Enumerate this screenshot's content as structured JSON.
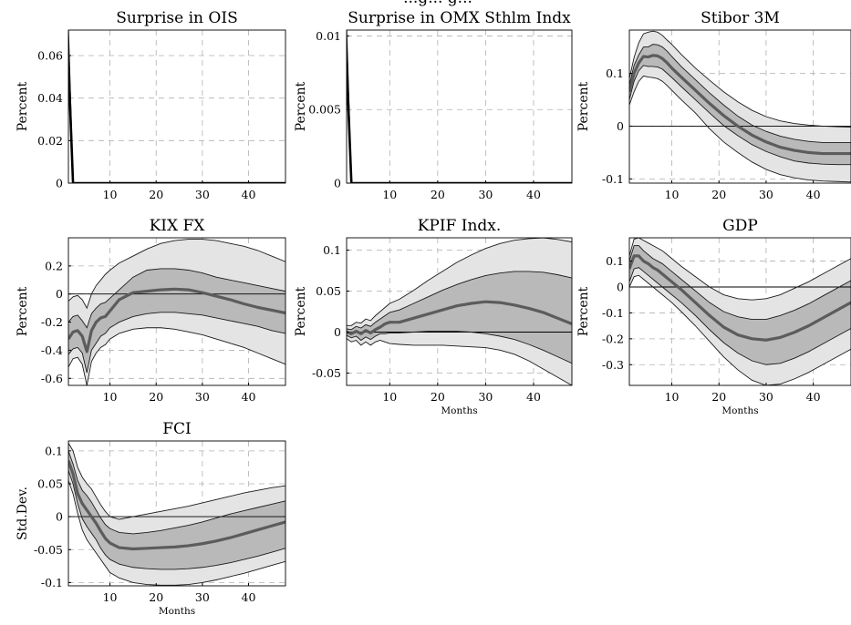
{
  "figure": {
    "partial_title": "...g... g..."
  },
  "colors": {
    "outer_band": "#e4e4e4",
    "inner_band": "#b9b9b9",
    "median_line": "#5c5c5c",
    "band_edges": "#1a1a1a",
    "grid": "#b0b0b0",
    "zero_line": "#000000",
    "shock_line": "#000000"
  },
  "chart_data": [
    {
      "type": "line",
      "title": "Surprise in OIS",
      "ylabel": "Percent",
      "xlabel": "",
      "xlim": [
        1,
        48
      ],
      "ylim": [
        0,
        0.072
      ],
      "xticks": [
        10,
        20,
        30,
        40
      ],
      "yticks": [
        0,
        0.02,
        0.04,
        0.06
      ],
      "ytick_labels": [
        "0",
        "0.02",
        "0.04",
        "0.06"
      ],
      "grid": true,
      "shock": {
        "x": [
          1,
          2,
          48
        ],
        "upper": [
          0.072,
          0,
          0
        ],
        "median": [
          0.057,
          0,
          0
        ]
      }
    },
    {
      "type": "line",
      "title": "Surprise in OMX Sthlm Indx",
      "ylabel": "Percent",
      "xlabel": "",
      "xlim": [
        1,
        48
      ],
      "ylim": [
        0,
        0.0104
      ],
      "xticks": [
        10,
        20,
        30,
        40
      ],
      "yticks": [
        0,
        0.005,
        0.01
      ],
      "ytick_labels": [
        "0",
        "0.005",
        "0.01"
      ],
      "grid": true,
      "shock": {
        "x": [
          1,
          2,
          48
        ],
        "upper": [
          0.0104,
          0,
          0
        ],
        "median": [
          0.0082,
          0,
          0
        ]
      }
    },
    {
      "type": "area",
      "title": "Stibor 3M",
      "ylabel": "Percent",
      "xlabel": "",
      "xlim": [
        1,
        48
      ],
      "ylim": [
        -0.108,
        0.182
      ],
      "xticks": [
        10,
        20,
        30,
        40
      ],
      "yticks": [
        -0.1,
        0,
        0.1
      ],
      "ytick_labels": [
        "-0.1",
        "0",
        "0.1"
      ],
      "grid": true,
      "zero_line": true,
      "x": [
        1,
        2,
        3,
        4,
        5,
        6,
        7,
        8,
        9,
        10,
        12,
        15,
        18,
        21,
        24,
        27,
        30,
        33,
        36,
        39,
        42,
        45,
        48
      ],
      "series": [
        {
          "role": "outer_lower",
          "values": [
            0.04,
            0.065,
            0.085,
            0.095,
            0.093,
            0.092,
            0.09,
            0.085,
            0.077,
            0.068,
            0.05,
            0.025,
            -0.005,
            -0.03,
            -0.05,
            -0.068,
            -0.082,
            -0.092,
            -0.098,
            -0.102,
            -0.104,
            -0.105,
            -0.106
          ]
        },
        {
          "role": "inner_lower",
          "values": [
            0.05,
            0.085,
            0.105,
            0.115,
            0.113,
            0.113,
            0.112,
            0.108,
            0.1,
            0.092,
            0.075,
            0.05,
            0.025,
            0.001,
            -0.018,
            -0.035,
            -0.048,
            -0.058,
            -0.066,
            -0.07,
            -0.072,
            -0.073,
            -0.073
          ]
        },
        {
          "role": "median",
          "values": [
            0.065,
            0.1,
            0.12,
            0.132,
            0.131,
            0.134,
            0.133,
            0.128,
            0.12,
            0.11,
            0.093,
            0.068,
            0.043,
            0.02,
            0.0,
            -0.017,
            -0.03,
            -0.04,
            -0.046,
            -0.05,
            -0.052,
            -0.052,
            -0.052
          ]
        },
        {
          "role": "inner_upper",
          "values": [
            0.078,
            0.115,
            0.135,
            0.15,
            0.15,
            0.155,
            0.154,
            0.15,
            0.142,
            0.132,
            0.113,
            0.088,
            0.063,
            0.04,
            0.019,
            0.002,
            -0.01,
            -0.019,
            -0.025,
            -0.029,
            -0.031,
            -0.031,
            -0.031
          ]
        },
        {
          "role": "outer_upper",
          "values": [
            0.09,
            0.13,
            0.158,
            0.175,
            0.178,
            0.18,
            0.178,
            0.172,
            0.163,
            0.155,
            0.136,
            0.11,
            0.087,
            0.065,
            0.046,
            0.03,
            0.018,
            0.01,
            0.005,
            0.002,
            0.0,
            -0.001,
            -0.002
          ]
        }
      ]
    },
    {
      "type": "area",
      "title": "KIX FX",
      "ylabel": "Percent",
      "xlabel": "",
      "xlim": [
        1,
        48
      ],
      "ylim": [
        -0.65,
        0.4
      ],
      "xticks": [
        10,
        20,
        30,
        40
      ],
      "yticks": [
        -0.6,
        -0.4,
        -0.2,
        0,
        0.2
      ],
      "ytick_labels": [
        "-0.6",
        "-0.4",
        "-0.2",
        "0",
        "0.2"
      ],
      "grid": true,
      "zero_line": true,
      "x": [
        1,
        2,
        3,
        4,
        5,
        6,
        7,
        8,
        9,
        10,
        12,
        15,
        18,
        21,
        24,
        27,
        30,
        33,
        36,
        39,
        42,
        45,
        48
      ],
      "series": [
        {
          "role": "outer_lower",
          "values": [
            -0.52,
            -0.46,
            -0.45,
            -0.5,
            -0.65,
            -0.48,
            -0.42,
            -0.38,
            -0.36,
            -0.32,
            -0.28,
            -0.25,
            -0.24,
            -0.24,
            -0.25,
            -0.27,
            -0.29,
            -0.32,
            -0.35,
            -0.38,
            -0.42,
            -0.46,
            -0.5
          ]
        },
        {
          "role": "inner_lower",
          "values": [
            -0.43,
            -0.39,
            -0.38,
            -0.42,
            -0.56,
            -0.4,
            -0.35,
            -0.3,
            -0.28,
            -0.24,
            -0.2,
            -0.16,
            -0.14,
            -0.13,
            -0.13,
            -0.14,
            -0.15,
            -0.17,
            -0.19,
            -0.21,
            -0.23,
            -0.26,
            -0.28
          ]
        },
        {
          "role": "median",
          "values": [
            -0.32,
            -0.27,
            -0.26,
            -0.3,
            -0.41,
            -0.26,
            -0.2,
            -0.17,
            -0.16,
            -0.12,
            -0.04,
            0.01,
            0.02,
            0.03,
            0.035,
            0.03,
            0.01,
            -0.015,
            -0.04,
            -0.07,
            -0.095,
            -0.115,
            -0.135
          ]
        },
        {
          "role": "inner_upper",
          "values": [
            -0.2,
            -0.16,
            -0.15,
            -0.19,
            -0.24,
            -0.14,
            -0.1,
            -0.07,
            -0.06,
            -0.03,
            0.03,
            0.12,
            0.17,
            0.18,
            0.18,
            0.17,
            0.15,
            0.12,
            0.1,
            0.08,
            0.06,
            0.04,
            0.02
          ]
        },
        {
          "role": "outer_upper",
          "values": [
            -0.05,
            -0.02,
            -0.01,
            -0.04,
            -0.1,
            0.0,
            0.06,
            0.1,
            0.14,
            0.17,
            0.22,
            0.27,
            0.32,
            0.36,
            0.38,
            0.39,
            0.39,
            0.38,
            0.36,
            0.34,
            0.31,
            0.27,
            0.23
          ]
        }
      ]
    },
    {
      "type": "area",
      "title": "KPIF Indx.",
      "ylabel": "Percent",
      "xlabel": "Months",
      "xlim": [
        1,
        48
      ],
      "ylim": [
        -0.065,
        0.115
      ],
      "xticks": [
        10,
        20,
        30,
        40
      ],
      "yticks": [
        -0.05,
        0,
        0.05,
        0.1
      ],
      "ytick_labels": [
        "-0.05",
        "0",
        "0.05",
        "0.1"
      ],
      "grid": true,
      "zero_line": true,
      "x": [
        1,
        2,
        3,
        4,
        5,
        6,
        7,
        8,
        9,
        10,
        12,
        15,
        18,
        21,
        24,
        27,
        30,
        33,
        36,
        39,
        42,
        45,
        48
      ],
      "series": [
        {
          "role": "outer_lower",
          "values": [
            -0.008,
            -0.012,
            -0.01,
            -0.016,
            -0.012,
            -0.016,
            -0.012,
            -0.01,
            -0.012,
            -0.014,
            -0.015,
            -0.016,
            -0.016,
            -0.016,
            -0.017,
            -0.018,
            -0.019,
            -0.022,
            -0.027,
            -0.035,
            -0.045,
            -0.055,
            -0.065
          ]
        },
        {
          "role": "inner_lower",
          "values": [
            -0.004,
            -0.007,
            -0.005,
            -0.01,
            -0.006,
            -0.009,
            -0.005,
            -0.002,
            -0.002,
            -0.001,
            -0.001,
            0.0,
            0.001,
            0.001,
            0.001,
            0.0,
            -0.002,
            -0.005,
            -0.009,
            -0.015,
            -0.022,
            -0.03,
            -0.038
          ]
        },
        {
          "role": "median",
          "values": [
            0.0,
            -0.002,
            0.001,
            -0.002,
            0.002,
            -0.001,
            0.003,
            0.006,
            0.01,
            0.012,
            0.012,
            0.017,
            0.022,
            0.027,
            0.032,
            0.035,
            0.037,
            0.036,
            0.033,
            0.029,
            0.024,
            0.017,
            0.01
          ]
        },
        {
          "role": "inner_upper",
          "values": [
            0.004,
            0.003,
            0.007,
            0.005,
            0.009,
            0.007,
            0.012,
            0.016,
            0.02,
            0.024,
            0.027,
            0.035,
            0.043,
            0.051,
            0.058,
            0.064,
            0.069,
            0.072,
            0.074,
            0.074,
            0.073,
            0.07,
            0.066
          ]
        },
        {
          "role": "outer_upper",
          "values": [
            0.008,
            0.008,
            0.012,
            0.011,
            0.016,
            0.014,
            0.02,
            0.025,
            0.03,
            0.035,
            0.04,
            0.051,
            0.063,
            0.074,
            0.085,
            0.094,
            0.102,
            0.108,
            0.112,
            0.114,
            0.115,
            0.113,
            0.11
          ]
        }
      ]
    },
    {
      "type": "area",
      "title": "GDP",
      "ylabel": "Percent",
      "xlabel": "Months",
      "xlim": [
        1,
        48
      ],
      "ylim": [
        -0.38,
        0.19
      ],
      "xticks": [
        10,
        20,
        30,
        40
      ],
      "yticks": [
        -0.3,
        -0.2,
        -0.1,
        0,
        0.1
      ],
      "ytick_labels": [
        "-0.3",
        "-0.2",
        "-0.1",
        "0",
        "0.1"
      ],
      "grid": true,
      "zero_line": true,
      "x": [
        1,
        2,
        3,
        4,
        5,
        6,
        7,
        8,
        9,
        10,
        12,
        15,
        18,
        21,
        24,
        27,
        30,
        33,
        36,
        39,
        42,
        45,
        48
      ],
      "series": [
        {
          "role": "outer_lower",
          "values": [
            0.0,
            0.04,
            0.045,
            0.03,
            0.015,
            0.0,
            -0.015,
            -0.03,
            -0.045,
            -0.06,
            -0.095,
            -0.15,
            -0.21,
            -0.27,
            -0.32,
            -0.36,
            -0.38,
            -0.375,
            -0.355,
            -0.33,
            -0.3,
            -0.27,
            -0.24
          ]
        },
        {
          "role": "inner_lower",
          "values": [
            0.02,
            0.07,
            0.075,
            0.06,
            0.045,
            0.03,
            0.015,
            0.0,
            -0.015,
            -0.03,
            -0.06,
            -0.11,
            -0.165,
            -0.215,
            -0.255,
            -0.285,
            -0.3,
            -0.295,
            -0.275,
            -0.25,
            -0.22,
            -0.19,
            -0.16
          ]
        },
        {
          "role": "median",
          "values": [
            0.07,
            0.12,
            0.12,
            0.1,
            0.09,
            0.075,
            0.065,
            0.05,
            0.035,
            0.02,
            -0.01,
            -0.06,
            -0.11,
            -0.155,
            -0.185,
            -0.2,
            -0.205,
            -0.195,
            -0.175,
            -0.15,
            -0.12,
            -0.09,
            -0.06
          ]
        },
        {
          "role": "inner_upper",
          "values": [
            0.1,
            0.16,
            0.16,
            0.14,
            0.125,
            0.11,
            0.1,
            0.09,
            0.075,
            0.06,
            0.03,
            -0.015,
            -0.06,
            -0.095,
            -0.115,
            -0.125,
            -0.125,
            -0.11,
            -0.09,
            -0.065,
            -0.035,
            -0.005,
            0.025
          ]
        },
        {
          "role": "outer_upper",
          "values": [
            0.12,
            0.185,
            0.19,
            0.18,
            0.17,
            0.16,
            0.15,
            0.14,
            0.125,
            0.11,
            0.08,
            0.04,
            0.0,
            -0.03,
            -0.045,
            -0.05,
            -0.045,
            -0.03,
            -0.005,
            0.02,
            0.05,
            0.08,
            0.11
          ]
        }
      ]
    },
    {
      "type": "area",
      "title": "FCI",
      "ylabel": "Std.Dev.",
      "xlabel": "Months",
      "xlim": [
        1,
        48
      ],
      "ylim": [
        -0.105,
        0.115
      ],
      "xticks": [
        10,
        20,
        30,
        40
      ],
      "yticks": [
        -0.1,
        -0.05,
        0,
        0.05,
        0.1
      ],
      "ytick_labels": [
        "-0.1",
        "-0.05",
        "0",
        "0.05",
        "0.1"
      ],
      "grid": true,
      "zero_line": true,
      "x": [
        1,
        2,
        3,
        4,
        5,
        6,
        7,
        8,
        9,
        10,
        12,
        15,
        18,
        21,
        24,
        27,
        30,
        33,
        36,
        39,
        42,
        45,
        48
      ],
      "series": [
        {
          "role": "outer_lower",
          "values": [
            0.055,
            0.035,
            0.005,
            -0.02,
            -0.035,
            -0.045,
            -0.055,
            -0.065,
            -0.075,
            -0.085,
            -0.093,
            -0.1,
            -0.103,
            -0.104,
            -0.104,
            -0.103,
            -0.1,
            -0.096,
            -0.091,
            -0.086,
            -0.08,
            -0.074,
            -0.068
          ]
        },
        {
          "role": "inner_lower",
          "values": [
            0.07,
            0.05,
            0.02,
            -0.003,
            -0.015,
            -0.025,
            -0.035,
            -0.048,
            -0.058,
            -0.065,
            -0.072,
            -0.077,
            -0.079,
            -0.08,
            -0.08,
            -0.079,
            -0.077,
            -0.074,
            -0.07,
            -0.065,
            -0.06,
            -0.054,
            -0.048
          ]
        },
        {
          "role": "median",
          "values": [
            0.085,
            0.065,
            0.035,
            0.02,
            0.01,
            0.0,
            -0.01,
            -0.022,
            -0.033,
            -0.04,
            -0.047,
            -0.049,
            -0.048,
            -0.047,
            -0.046,
            -0.044,
            -0.041,
            -0.037,
            -0.032,
            -0.026,
            -0.02,
            -0.014,
            -0.008
          ]
        },
        {
          "role": "inner_upper",
          "values": [
            0.1,
            0.08,
            0.055,
            0.04,
            0.032,
            0.022,
            0.01,
            -0.002,
            -0.012,
            -0.018,
            -0.024,
            -0.026,
            -0.024,
            -0.021,
            -0.017,
            -0.013,
            -0.008,
            -0.002,
            0.004,
            0.009,
            0.014,
            0.019,
            0.024
          ]
        },
        {
          "role": "outer_upper",
          "values": [
            0.112,
            0.1,
            0.075,
            0.06,
            0.05,
            0.042,
            0.03,
            0.018,
            0.008,
            0.0,
            -0.004,
            0.0,
            0.004,
            0.008,
            0.012,
            0.016,
            0.021,
            0.026,
            0.031,
            0.036,
            0.04,
            0.044,
            0.047
          ]
        }
      ]
    }
  ]
}
